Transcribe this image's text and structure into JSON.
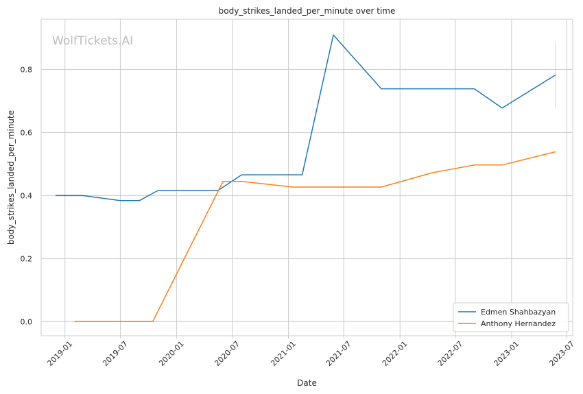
{
  "chart_data": {
    "type": "line",
    "title": "body_strikes_landed_per_minute over time",
    "xlabel": "Date",
    "ylabel": "body_strikes_landed_per_minute",
    "watermark": "WolfTickets.AI",
    "x_ticks": [
      "2019-01",
      "2019-07",
      "2020-01",
      "2020-07",
      "2021-01",
      "2021-07",
      "2022-01",
      "2022-07",
      "2023-01",
      "2023-07"
    ],
    "y_ticks": [
      0.0,
      0.2,
      0.4,
      0.6,
      0.8
    ],
    "xlim": [
      "2018-10-15",
      "2023-07-20"
    ],
    "ylim": [
      -0.045,
      0.96
    ],
    "grid": true,
    "legend_position": "lower right",
    "series": [
      {
        "name": "Edmen Shahbazyan",
        "color": "#1f77b4",
        "points": [
          [
            "2018-12-01",
            0.4
          ],
          [
            "2019-03-01",
            0.4
          ],
          [
            "2019-07-01",
            0.384
          ],
          [
            "2019-09-01",
            0.384
          ],
          [
            "2019-11-01",
            0.416
          ],
          [
            "2020-05-15",
            0.416
          ],
          [
            "2020-08-01",
            0.466
          ],
          [
            "2021-02-15",
            0.466
          ],
          [
            "2021-05-28",
            0.91
          ],
          [
            "2021-11-01",
            0.739
          ],
          [
            "2022-09-01",
            0.739
          ],
          [
            "2022-12-01",
            0.678
          ],
          [
            "2023-05-25",
            0.783
          ]
        ],
        "error_bar": {
          "x": "2023-05-25",
          "low": 0.678,
          "high": 0.888
        }
      },
      {
        "name": "Anthony Hernandez",
        "color": "#ff7f0e",
        "points": [
          [
            "2019-02-01",
            0.0
          ],
          [
            "2019-10-15",
            0.0
          ],
          [
            "2020-06-01",
            0.445
          ],
          [
            "2020-08-01",
            0.445
          ],
          [
            "2021-01-15",
            0.427
          ],
          [
            "2021-11-01",
            0.427
          ],
          [
            "2022-04-15",
            0.472
          ],
          [
            "2022-09-01",
            0.497
          ],
          [
            "2022-12-01",
            0.497
          ],
          [
            "2023-05-25",
            0.539
          ]
        ]
      }
    ]
  }
}
